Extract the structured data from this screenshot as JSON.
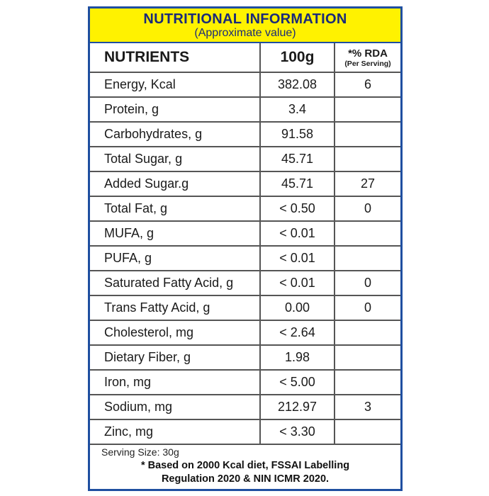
{
  "header": {
    "title": "NUTRITIONAL INFORMATION",
    "subtitle": "(Approximate value)"
  },
  "table": {
    "columns": {
      "nutrient": "NUTRIENTS",
      "per_100g": "100g",
      "rda": "*% RDA",
      "rda_note": "(Per Serving)"
    },
    "rows": [
      [
        "Energy, Kcal",
        "382.08",
        "6"
      ],
      [
        "Protein, g",
        "3.4",
        null
      ],
      [
        "Carbohydrates, g",
        "91.58",
        null
      ],
      [
        "Total Sugar, g",
        "45.71",
        null
      ],
      [
        "Added Sugar.g",
        "45.71",
        "27"
      ],
      [
        "Total Fat, g",
        "< 0.50",
        "0"
      ],
      [
        "MUFA, g",
        "< 0.01",
        null
      ],
      [
        "PUFA, g",
        "< 0.01",
        null
      ],
      [
        "Saturated Fatty Acid, g",
        "< 0.01",
        "0"
      ],
      [
        "Trans Fatty Acid, g",
        "0.00",
        "0"
      ],
      [
        "Cholesterol, mg",
        "< 2.64",
        null
      ],
      [
        "Dietary Fiber, g",
        "1.98",
        null
      ],
      [
        "Iron, mg",
        "< 5.00",
        null
      ],
      [
        "Sodium, mg",
        "212.97",
        "3"
      ],
      [
        "Zinc, mg",
        "< 3.30",
        null
      ]
    ]
  },
  "footer": {
    "serving_size": "Serving Size: 30g",
    "note_lines": [
      "* Based on 2000 Kcal diet, FSSAI Labelling",
      "Regulation 2020 & NIN ICMR 2020."
    ]
  }
}
